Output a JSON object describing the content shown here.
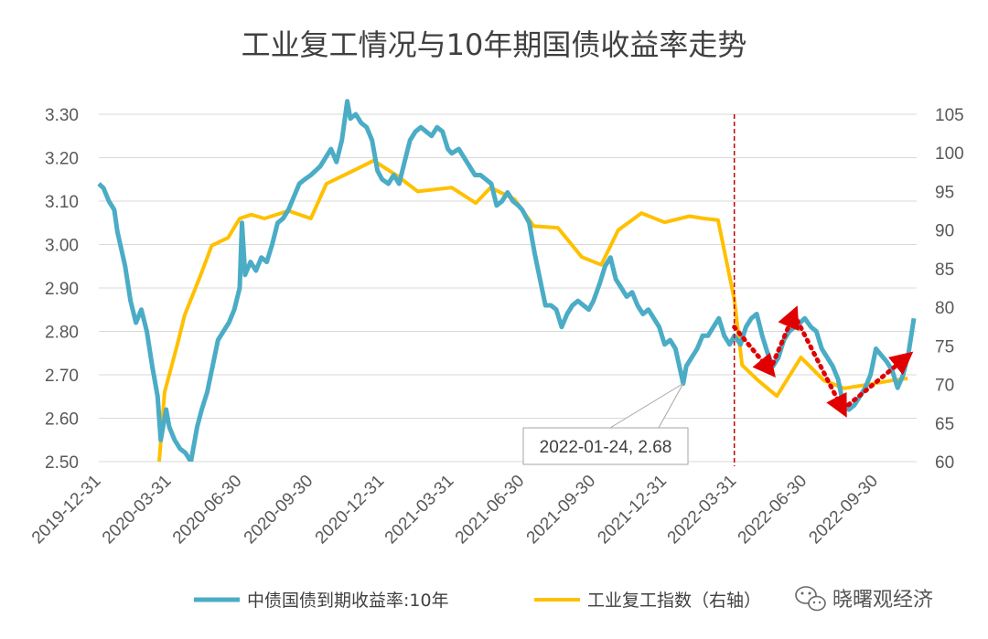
{
  "chart_data": {
    "type": "line",
    "title": "工业复工情况与10年期国债收益率走势",
    "x_ticks": [
      "2019-12-31",
      "2020-03-31",
      "2020-06-30",
      "2020-09-30",
      "2020-12-31",
      "2021-03-31",
      "2021-06-30",
      "2021-09-30",
      "2021-12-31",
      "2022-03-31",
      "2022-06-30",
      "2022-09-30"
    ],
    "y_left": {
      "ticks": [
        "2.50",
        "2.60",
        "2.70",
        "2.80",
        "2.90",
        "3.00",
        "3.10",
        "3.20",
        "3.30"
      ],
      "ylim": [
        2.5,
        3.3
      ]
    },
    "y_right": {
      "ticks": [
        "60",
        "65",
        "70",
        "75",
        "80",
        "85",
        "90",
        "95",
        "100",
        "105"
      ],
      "ylim": [
        60,
        105
      ]
    },
    "grid": true,
    "legend_position": "bottom",
    "series": [
      {
        "name": "中债国债到期收益率:10年",
        "axis": "left",
        "color": "#4BACC6",
        "points": [
          [
            "2019-12-31",
            3.14
          ],
          [
            "2020-01-06",
            3.13
          ],
          [
            "2020-01-13",
            3.1
          ],
          [
            "2020-01-20",
            3.08
          ],
          [
            "2020-01-24",
            3.03
          ],
          [
            "2020-02-03",
            2.95
          ],
          [
            "2020-02-10",
            2.87
          ],
          [
            "2020-02-17",
            2.82
          ],
          [
            "2020-02-24",
            2.85
          ],
          [
            "2020-03-02",
            2.8
          ],
          [
            "2020-03-09",
            2.72
          ],
          [
            "2020-03-16",
            2.65
          ],
          [
            "2020-03-20",
            2.55
          ],
          [
            "2020-03-27",
            2.62
          ],
          [
            "2020-03-31",
            2.58
          ],
          [
            "2020-04-07",
            2.55
          ],
          [
            "2020-04-14",
            2.53
          ],
          [
            "2020-04-21",
            2.52
          ],
          [
            "2020-04-28",
            2.5
          ],
          [
            "2020-05-06",
            2.58
          ],
          [
            "2020-05-12",
            2.62
          ],
          [
            "2020-05-19",
            2.66
          ],
          [
            "2020-05-26",
            2.72
          ],
          [
            "2020-06-02",
            2.78
          ],
          [
            "2020-06-09",
            2.8
          ],
          [
            "2020-06-16",
            2.82
          ],
          [
            "2020-06-23",
            2.85
          ],
          [
            "2020-06-30",
            2.9
          ],
          [
            "2020-07-03",
            3.05
          ],
          [
            "2020-07-07",
            2.93
          ],
          [
            "2020-07-14",
            2.96
          ],
          [
            "2020-07-21",
            2.94
          ],
          [
            "2020-07-28",
            2.97
          ],
          [
            "2020-08-04",
            2.96
          ],
          [
            "2020-08-11",
            3.0
          ],
          [
            "2020-08-18",
            3.05
          ],
          [
            "2020-08-25",
            3.06
          ],
          [
            "2020-09-01",
            3.08
          ],
          [
            "2020-09-08",
            3.11
          ],
          [
            "2020-09-15",
            3.14
          ],
          [
            "2020-09-22",
            3.15
          ],
          [
            "2020-09-30",
            3.16
          ],
          [
            "2020-10-12",
            3.18
          ],
          [
            "2020-10-19",
            3.2
          ],
          [
            "2020-10-26",
            3.22
          ],
          [
            "2020-11-02",
            3.19
          ],
          [
            "2020-11-09",
            3.24
          ],
          [
            "2020-11-16",
            3.33
          ],
          [
            "2020-11-20",
            3.29
          ],
          [
            "2020-11-27",
            3.3
          ],
          [
            "2020-12-04",
            3.28
          ],
          [
            "2020-12-11",
            3.27
          ],
          [
            "2020-12-18",
            3.24
          ],
          [
            "2020-12-25",
            3.17
          ],
          [
            "2020-12-31",
            3.15
          ],
          [
            "2021-01-08",
            3.14
          ],
          [
            "2021-01-15",
            3.16
          ],
          [
            "2021-01-22",
            3.14
          ],
          [
            "2021-01-29",
            3.19
          ],
          [
            "2021-02-05",
            3.24
          ],
          [
            "2021-02-12",
            3.26
          ],
          [
            "2021-02-19",
            3.27
          ],
          [
            "2021-02-26",
            3.26
          ],
          [
            "2021-03-05",
            3.25
          ],
          [
            "2021-03-12",
            3.27
          ],
          [
            "2021-03-19",
            3.26
          ],
          [
            "2021-03-26",
            3.22
          ],
          [
            "2021-03-31",
            3.21
          ],
          [
            "2021-04-09",
            3.22
          ],
          [
            "2021-04-16",
            3.2
          ],
          [
            "2021-04-23",
            3.18
          ],
          [
            "2021-04-30",
            3.16
          ],
          [
            "2021-05-07",
            3.16
          ],
          [
            "2021-05-14",
            3.15
          ],
          [
            "2021-05-21",
            3.14
          ],
          [
            "2021-05-28",
            3.09
          ],
          [
            "2021-06-04",
            3.1
          ],
          [
            "2021-06-11",
            3.12
          ],
          [
            "2021-06-18",
            3.1
          ],
          [
            "2021-06-25",
            3.09
          ],
          [
            "2021-06-30",
            3.08
          ],
          [
            "2021-07-09",
            3.05
          ],
          [
            "2021-07-16",
            2.98
          ],
          [
            "2021-07-23",
            2.92
          ],
          [
            "2021-07-30",
            2.86
          ],
          [
            "2021-08-06",
            2.86
          ],
          [
            "2021-08-13",
            2.85
          ],
          [
            "2021-08-20",
            2.81
          ],
          [
            "2021-08-27",
            2.84
          ],
          [
            "2021-09-03",
            2.86
          ],
          [
            "2021-09-10",
            2.87
          ],
          [
            "2021-09-17",
            2.86
          ],
          [
            "2021-09-24",
            2.85
          ],
          [
            "2021-09-30",
            2.87
          ],
          [
            "2021-10-08",
            2.91
          ],
          [
            "2021-10-15",
            2.95
          ],
          [
            "2021-10-22",
            2.97
          ],
          [
            "2021-10-29",
            2.92
          ],
          [
            "2021-11-05",
            2.9
          ],
          [
            "2021-11-12",
            2.88
          ],
          [
            "2021-11-19",
            2.89
          ],
          [
            "2021-11-26",
            2.86
          ],
          [
            "2021-12-03",
            2.84
          ],
          [
            "2021-12-10",
            2.85
          ],
          [
            "2021-12-17",
            2.83
          ],
          [
            "2021-12-24",
            2.81
          ],
          [
            "2021-12-31",
            2.77
          ],
          [
            "2022-01-07",
            2.78
          ],
          [
            "2022-01-14",
            2.76
          ],
          [
            "2022-01-24",
            2.68
          ],
          [
            "2022-01-28",
            2.72
          ],
          [
            "2022-02-11",
            2.76
          ],
          [
            "2022-02-18",
            2.79
          ],
          [
            "2022-02-25",
            2.79
          ],
          [
            "2022-03-04",
            2.81
          ],
          [
            "2022-03-11",
            2.83
          ],
          [
            "2022-03-18",
            2.79
          ],
          [
            "2022-03-25",
            2.77
          ],
          [
            "2022-03-31",
            2.79
          ],
          [
            "2022-04-08",
            2.77
          ],
          [
            "2022-04-15",
            2.81
          ],
          [
            "2022-04-22",
            2.83
          ],
          [
            "2022-04-29",
            2.84
          ],
          [
            "2022-05-06",
            2.79
          ],
          [
            "2022-05-13",
            2.75
          ],
          [
            "2022-05-20",
            2.72
          ],
          [
            "2022-05-27",
            2.74
          ],
          [
            "2022-06-03",
            2.78
          ],
          [
            "2022-06-10",
            2.8
          ],
          [
            "2022-06-17",
            2.81
          ],
          [
            "2022-06-24",
            2.82
          ],
          [
            "2022-06-30",
            2.83
          ],
          [
            "2022-07-08",
            2.81
          ],
          [
            "2022-07-15",
            2.8
          ],
          [
            "2022-07-22",
            2.76
          ],
          [
            "2022-07-29",
            2.74
          ],
          [
            "2022-08-05",
            2.72
          ],
          [
            "2022-08-12",
            2.69
          ],
          [
            "2022-08-19",
            2.63
          ],
          [
            "2022-08-26",
            2.62
          ],
          [
            "2022-09-02",
            2.63
          ],
          [
            "2022-09-09",
            2.65
          ],
          [
            "2022-09-16",
            2.67
          ],
          [
            "2022-09-23",
            2.7
          ],
          [
            "2022-09-30",
            2.76
          ],
          [
            "2022-10-14",
            2.73
          ],
          [
            "2022-10-21",
            2.71
          ],
          [
            "2022-10-28",
            2.67
          ],
          [
            "2022-11-04",
            2.7
          ],
          [
            "2022-11-11",
            2.75
          ],
          [
            "2022-11-18",
            2.83
          ]
        ]
      },
      {
        "name": "工业复工指数（右轴）",
        "axis": "right",
        "color": "#FFC000",
        "points": [
          [
            "2020-03-18",
            60
          ],
          [
            "2020-03-25",
            69
          ],
          [
            "2020-04-10",
            75
          ],
          [
            "2020-04-20",
            79
          ],
          [
            "2020-05-10",
            84
          ],
          [
            "2020-05-25",
            88
          ],
          [
            "2020-06-15",
            89
          ],
          [
            "2020-06-30",
            91.5
          ],
          [
            "2020-07-15",
            92
          ],
          [
            "2020-08-01",
            91.5
          ],
          [
            "2020-09-01",
            92.5
          ],
          [
            "2020-09-30",
            91.5
          ],
          [
            "2020-10-20",
            96
          ],
          [
            "2020-11-20",
            97.5
          ],
          [
            "2020-12-20",
            99
          ],
          [
            "2021-01-20",
            97
          ],
          [
            "2021-02-15",
            95
          ],
          [
            "2021-03-31",
            95.5
          ],
          [
            "2021-05-01",
            93.5
          ],
          [
            "2021-05-20",
            95.5
          ],
          [
            "2021-06-20",
            94
          ],
          [
            "2021-07-15",
            90.5
          ],
          [
            "2021-08-15",
            90.3
          ],
          [
            "2021-09-15",
            86.5
          ],
          [
            "2021-10-10",
            85.5
          ],
          [
            "2021-11-01",
            90
          ],
          [
            "2021-12-01",
            92.2
          ],
          [
            "2021-12-31",
            91
          ],
          [
            "2022-02-01",
            91.8
          ],
          [
            "2022-02-20",
            91.5
          ],
          [
            "2022-03-10",
            91.3
          ],
          [
            "2022-03-31",
            81
          ],
          [
            "2022-04-10",
            72.5
          ],
          [
            "2022-05-01",
            70.5
          ],
          [
            "2022-05-25",
            68.5
          ],
          [
            "2022-06-25",
            73.5
          ],
          [
            "2022-07-25",
            70.5
          ],
          [
            "2022-08-20",
            69.5
          ],
          [
            "2022-09-20",
            70
          ],
          [
            "2022-10-20",
            70.5
          ],
          [
            "2022-11-10",
            70.8
          ]
        ]
      }
    ],
    "annotation": {
      "label": "2022-01-24, 2.68",
      "x": "2022-01-24",
      "y": 2.68
    },
    "reference_line": {
      "x": "2022-03-31",
      "color": "#C00000",
      "style": "dashed"
    },
    "arrows": [
      {
        "from": [
          "2022-03-31",
          2.81
        ],
        "to": [
          "2022-05-16",
          2.71
        ],
        "color": "#E00000",
        "style": "dotted"
      },
      {
        "from": [
          "2022-05-16",
          2.71
        ],
        "to": [
          "2022-06-16",
          2.84
        ],
        "color": "#E00000",
        "style": "dotted"
      },
      {
        "from": [
          "2022-06-16",
          2.84
        ],
        "to": [
          "2022-08-18",
          2.62
        ],
        "color": "#E00000",
        "style": "dotted"
      },
      {
        "from": [
          "2022-08-18",
          2.62
        ],
        "to": [
          "2022-11-08",
          2.74
        ],
        "color": "#E00000",
        "style": "dotted"
      }
    ]
  },
  "watermark": {
    "text": "晓曙观经济",
    "icon": "wechat-icon"
  }
}
